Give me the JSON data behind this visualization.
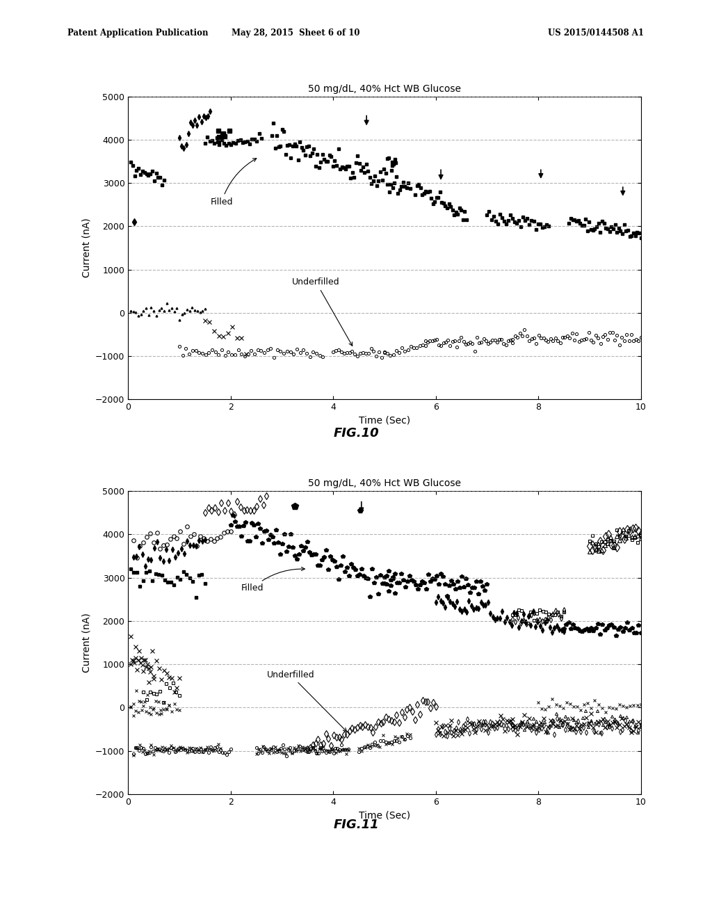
{
  "title": "50 mg/dL, 40% Hct WB Glucose",
  "xlabel": "Time (Sec)",
  "ylabel": "Current (nA)",
  "fig1_label": "FIG.10",
  "fig2_label": "FIG.11",
  "header_left": "Patent Application Publication",
  "header_mid": "May 28, 2015  Sheet 6 of 10",
  "header_right": "US 2015/0144508 A1",
  "xlim": [
    0,
    10
  ],
  "ylim": [
    -2000,
    5000
  ],
  "yticks": [
    -2000,
    -1000,
    0,
    1000,
    2000,
    3000,
    4000,
    5000
  ],
  "xticks": [
    0,
    2,
    4,
    6,
    8,
    10
  ],
  "bg_color": "#ffffff",
  "text_color": "#000000"
}
